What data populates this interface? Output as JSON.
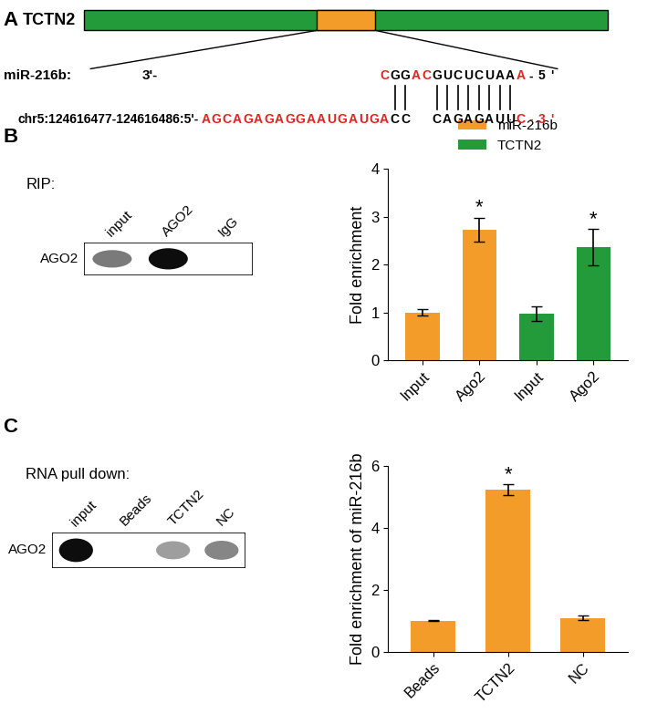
{
  "diagram": {
    "label": "A",
    "gene": "TCTN2",
    "mirna_label": "miR-216b:",
    "mirna_end": "3'-",
    "mirna_segments": [
      {
        "text": "C",
        "color": "#e8201c"
      },
      {
        "text": "GG",
        "color": "#000000"
      },
      {
        "text": "AC",
        "color": "#e8201c"
      },
      {
        "text": "GUCUCUAA",
        "color": "#000000"
      },
      {
        "text": "A",
        "color": "#e8201c"
      },
      {
        "text": "-5'",
        "color": "#000000"
      }
    ],
    "target_segments": [
      {
        "text": "chr5:124616477-124616486:5'-",
        "color": "#000000"
      },
      {
        "text": "AGCAGAGAGGAAUGAUGA",
        "color": "#e8201c"
      },
      {
        "text": "CC  CAGAGAUU",
        "color": "#000000"
      },
      {
        "text": "C-3'",
        "color": "#e8201c"
      }
    ]
  },
  "blots": [
    {
      "label": "B",
      "title": "RIP:",
      "lanes": [
        "input",
        "AGO2",
        "IgG"
      ],
      "band": "AGO2",
      "band_strength": [
        0.55,
        1.0,
        0.0
      ]
    },
    {
      "label": "C",
      "title": "RNA pull down:",
      "lanes": [
        "input",
        "Beads",
        "TCTN2",
        "NC"
      ],
      "band": "AGO2",
      "band_strength": [
        1.0,
        0.0,
        0.4,
        0.5
      ]
    }
  ],
  "chart_data": [
    {
      "type": "bar",
      "categories": [
        "Input",
        "Ago2",
        "Input",
        "Ago2"
      ],
      "series": [
        {
          "name": "miR-216b",
          "color": "#f39c2a",
          "values": [
            1.0,
            2.73,
            null,
            null
          ],
          "errors": [
            0.07,
            0.25,
            null,
            null
          ],
          "marks": [
            null,
            "*",
            null,
            null
          ]
        },
        {
          "name": "TCTN2",
          "color": "#239b3b",
          "values": [
            null,
            null,
            0.98,
            2.36
          ],
          "errors": [
            null,
            null,
            0.15,
            0.38
          ],
          "marks": [
            null,
            null,
            null,
            "*"
          ]
        }
      ],
      "ylabel": "Fold enrichment",
      "ylim": [
        0,
        4
      ],
      "yticks": [
        0,
        1,
        2,
        3,
        4
      ],
      "legend": "top"
    },
    {
      "type": "bar",
      "categories": [
        "Beads",
        "TCTN2",
        "NC"
      ],
      "values": [
        1.0,
        5.22,
        1.08
      ],
      "errors": [
        0.02,
        0.18,
        0.07
      ],
      "marks": [
        null,
        "*",
        null
      ],
      "color": "#f39c2a",
      "ylabel": "Fold enrichment of miR-216b",
      "ylim": [
        0,
        6
      ],
      "yticks": [
        0,
        2,
        4,
        6
      ]
    }
  ]
}
